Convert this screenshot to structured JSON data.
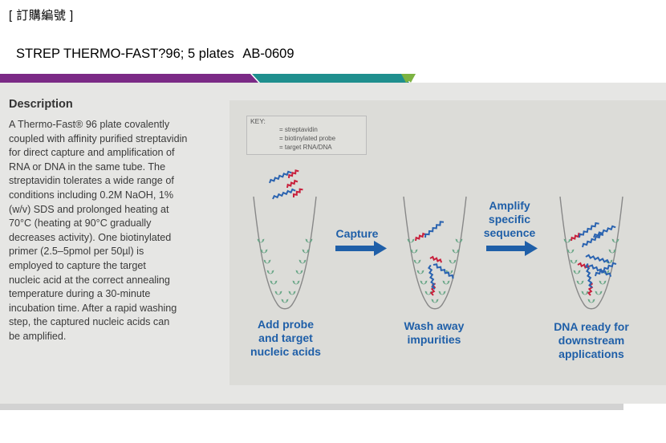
{
  "header": {
    "order_number_label": "[ 訂購編號 ]"
  },
  "product": {
    "name": "STREP THERMO-FAST?96; 5 plates",
    "catalog_number": "AB-0609"
  },
  "colors": {
    "band_purple": "#7b2a86",
    "band_teal": "#1f8f8e",
    "band_green": "#7cb342",
    "accent_blue": "#1f5fa8",
    "streptavidin": "#7dbf9c",
    "probe": "#c8203c"
  },
  "description": {
    "title": "Description",
    "lines": [
      "A Thermo-Fast® 96 plate covalently",
      "coupled with affinity purified streptavidin",
      "for direct capture and amplification of",
      "RNA or DNA in the same tube. The",
      "streptavidin tolerates a wide range of",
      "conditions including 0.2M NaOH, 1%",
      "(w/v) SDS and prolonged heating at",
      "70°C (heating at 90°C gradually",
      "decreases activity). One biotinylated",
      "primer (2.5–5pmol per 50µl) is",
      "employed to capture the target",
      "nucleic acid at the correct annealing",
      "temperature during a 30-minute",
      "incubation time. After a rapid washing",
      "step, the captured nucleic acids can",
      "be amplified."
    ]
  },
  "key": {
    "title": "KEY:",
    "items": [
      "= streptavidin",
      "= biotinylated probe",
      "= target RNA/DNA"
    ]
  },
  "figure": {
    "arrow1_label": "Capture",
    "arrow2_label_lines": [
      "Amplify",
      "specific",
      "sequence"
    ],
    "step1_lines": [
      "Add probe",
      "and target",
      "nucleic acids"
    ],
    "step2_lines": [
      "Wash away",
      "impurities"
    ],
    "step3_lines": [
      "DNA ready for",
      "downstream",
      "applications"
    ]
  }
}
